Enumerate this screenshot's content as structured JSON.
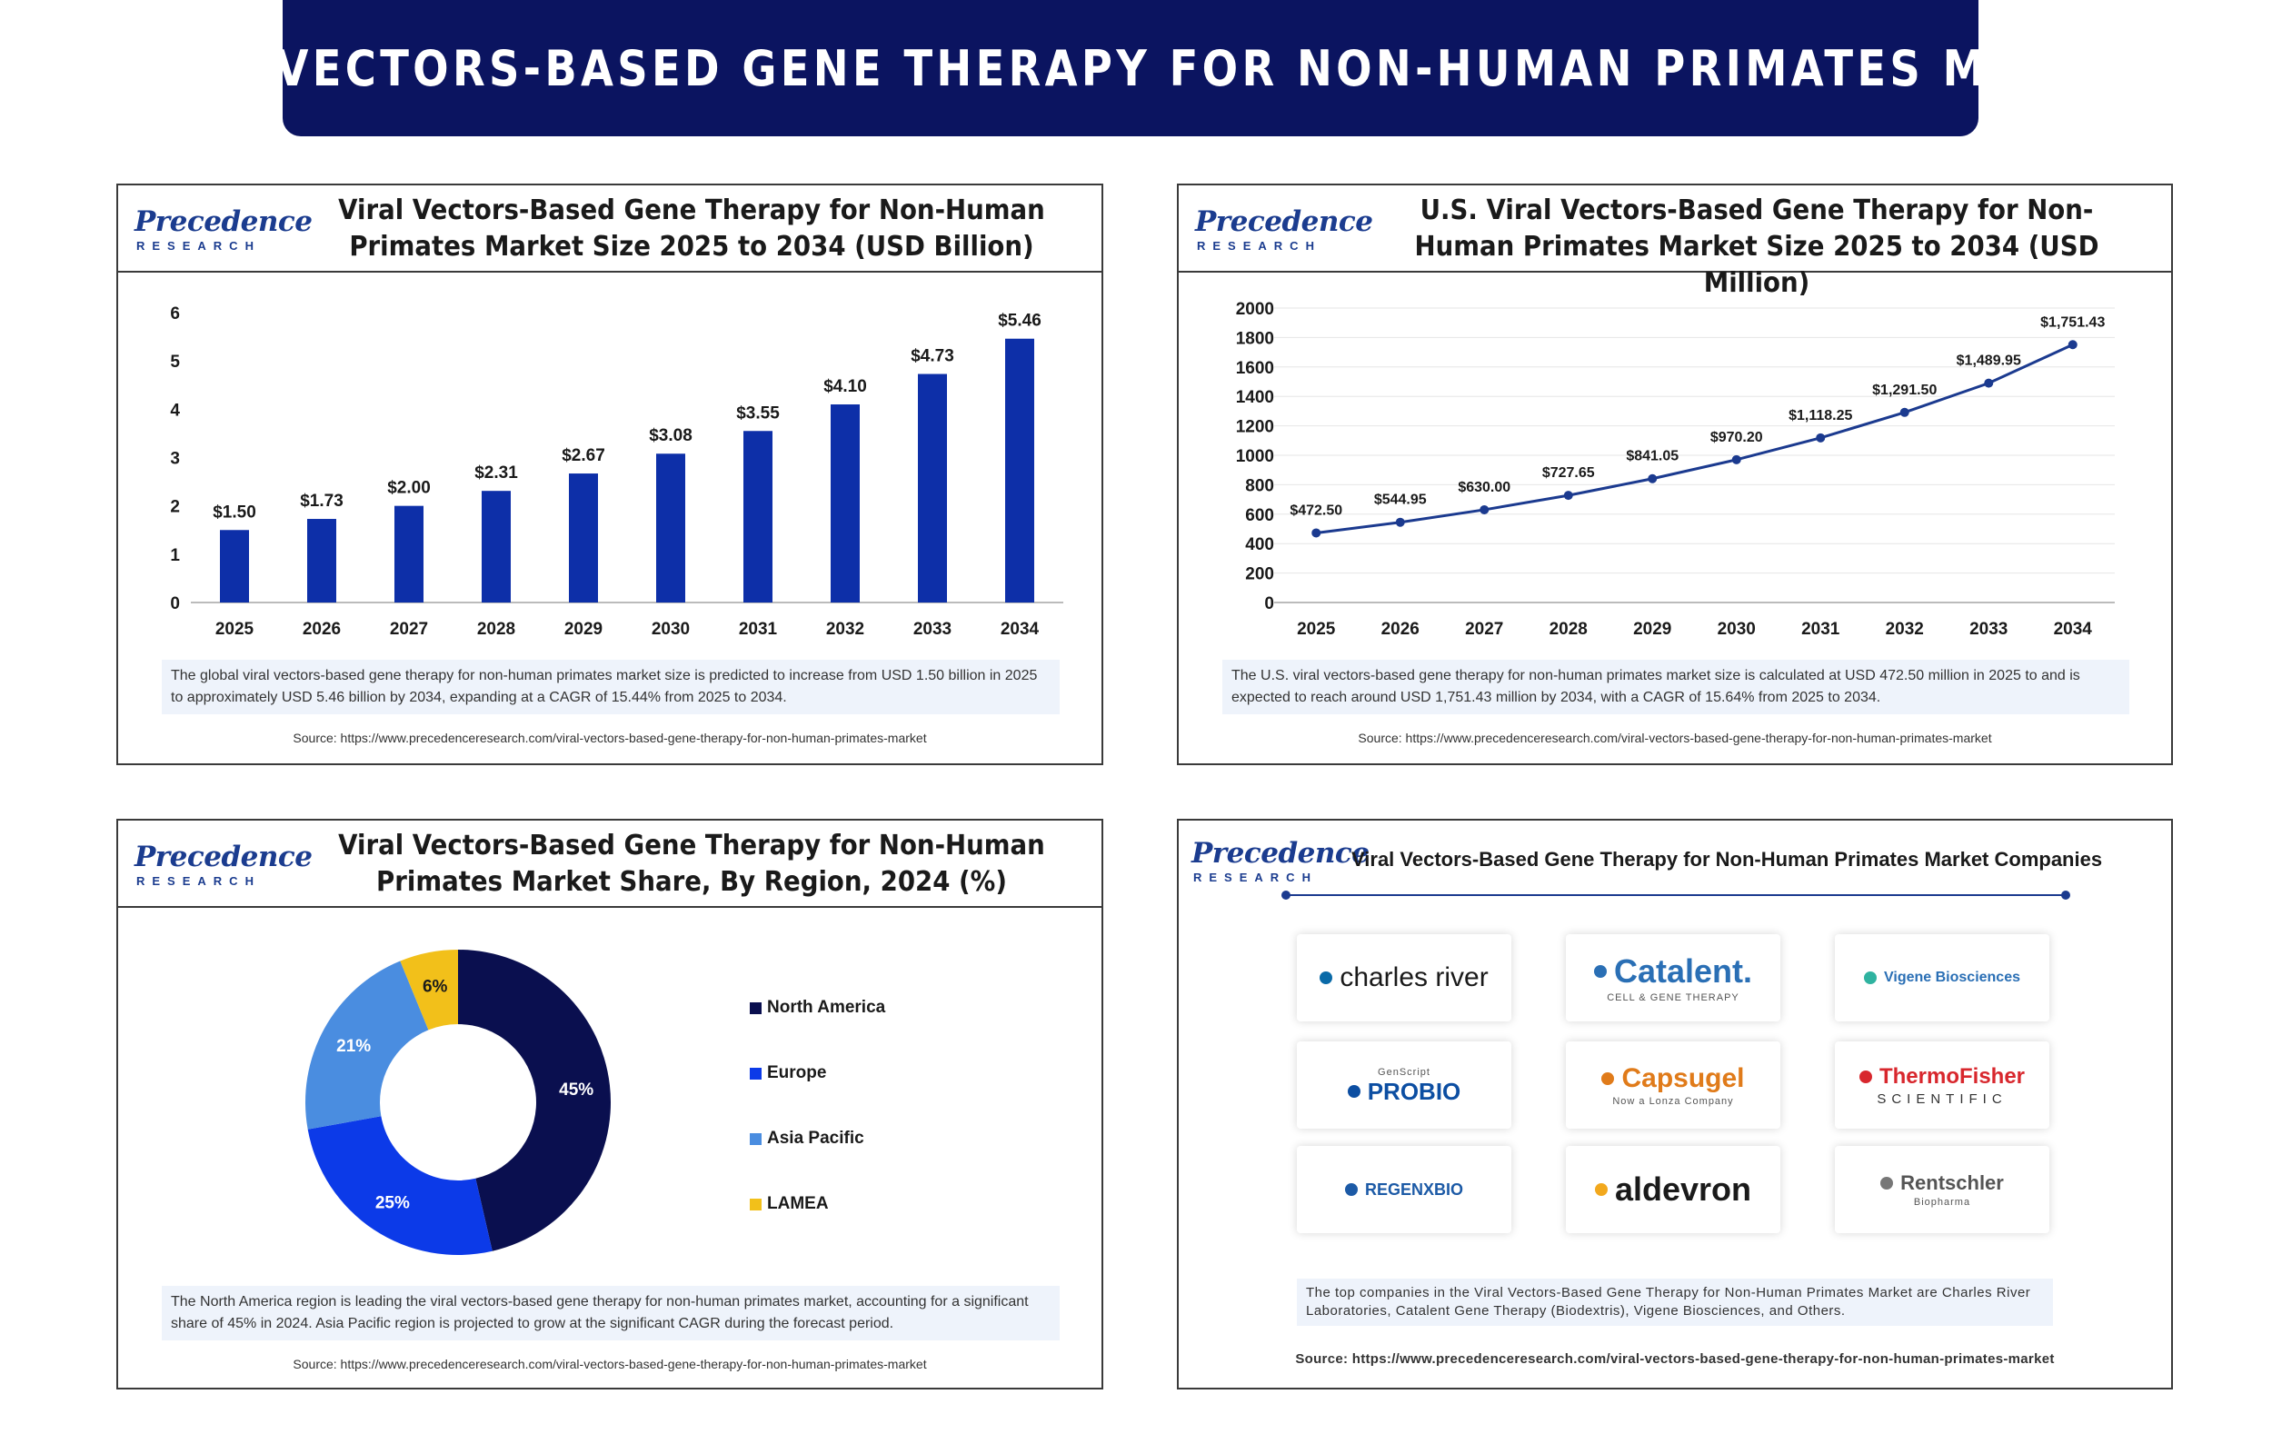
{
  "banner": {
    "title": "VIRAL VECTORS-BASED GENE THERAPY FOR NON-HUMAN PRIMATES MARKET"
  },
  "logo": {
    "main": "Precedence",
    "sub": "RESEARCH"
  },
  "panels": [
    {
      "title": "Viral Vectors-Based Gene Therapy for Non-Human Primates Market Size 2025 to 2034 (USD Billion)",
      "description": "The global viral vectors-based gene therapy for non-human primates market size is predicted to increase from USD 1.50 billion in 2025 to approximately USD 5.46 billion by 2034, expanding at a CAGR of 15.44% from 2025 to 2034.",
      "source": "Source: https://www.precedenceresearch.com/viral-vectors-based-gene-therapy-for-non-human-primates-market"
    },
    {
      "title": "U.S. Viral Vectors-Based Gene Therapy for Non-Human Primates Market Size 2025 to 2034 (USD Million)",
      "description": "The U.S. viral vectors-based gene therapy for non-human primates market size is calculated at USD 472.50 million in 2025 to and is expected to reach around USD 1,751.43 million by 2034, with a CAGR of 15.64% from 2025 to 2034.",
      "source": "Source: https://www.precedenceresearch.com/viral-vectors-based-gene-therapy-for-non-human-primates-market"
    },
    {
      "title": "Viral Vectors-Based Gene Therapy for Non-Human Primates Market Share, By Region, 2024 (%)",
      "description": "The North America region is leading the viral vectors-based gene therapy for non-human primates market, accounting for a significant share of 45% in 2024. Asia Pacific region is projected to grow at the significant CAGR during the forecast period.",
      "source": "Source: https://www.precedenceresearch.com/viral-vectors-based-gene-therapy-for-non-human-primates-market"
    },
    {
      "title": "Viral Vectors-Based Gene Therapy for Non-Human Primates Market Companies",
      "description": "The top companies in the Viral Vectors-Based Gene Therapy for Non-Human Primates Market are Charles River Laboratories, Catalent Gene Therapy (Biodextris), Vigene Biosciences,  and Others.",
      "source": "Source: https://www.precedenceresearch.com/viral-vectors-based-gene-therapy-for-non-human-primates-market"
    }
  ],
  "companies": [
    {
      "name": "charles river",
      "sub": "",
      "color": "#1a1a1a",
      "accent": "#0a6aa8"
    },
    {
      "name": "Catalent.",
      "sub": "CELL & GENE THERAPY",
      "color": "#2a6fb5",
      "accent": "#2a6fb5"
    },
    {
      "name": "Vigene Biosciences",
      "sub": "",
      "color": "#2a6fb5",
      "accent": "#2fb3a0"
    },
    {
      "name": "PROBIO",
      "sub": "GenScript",
      "color": "#0c4ea2",
      "accent": "#0c4ea2"
    },
    {
      "name": "Capsugel",
      "sub": "Now a Lonza Company",
      "color": "#e07b1a",
      "accent": "#e07b1a"
    },
    {
      "name": "ThermoFisher",
      "sub": "SCIENTIFIC",
      "color": "#d8272d",
      "accent": "#d8272d"
    },
    {
      "name": "REGENXBIO",
      "sub": "",
      "color": "#1c5aa6",
      "accent": "#1c5aa6"
    },
    {
      "name": "aldevron",
      "sub": "",
      "color": "#1a1a1a",
      "accent": "#f2a81d"
    },
    {
      "name": "Rentschler",
      "sub": "Biopharma",
      "color": "#555555",
      "accent": "#777777"
    }
  ],
  "chart_data": [
    {
      "type": "bar",
      "categories": [
        "2025",
        "2026",
        "2027",
        "2028",
        "2029",
        "2030",
        "2031",
        "2032",
        "2033",
        "2034"
      ],
      "values": [
        1.5,
        1.73,
        2.0,
        2.31,
        2.67,
        3.08,
        3.55,
        4.1,
        4.73,
        5.46
      ],
      "data_labels": [
        "$1.50",
        "$1.73",
        "$2.00",
        "$2.31",
        "$2.67",
        "$3.08",
        "$3.55",
        "$4.10",
        "$4.73",
        "$5.46"
      ],
      "yticks": [
        0,
        1,
        2,
        3,
        4,
        5,
        6
      ],
      "ylim": [
        0,
        6
      ],
      "color": "#0d2fa8",
      "grid": false
    },
    {
      "type": "line",
      "categories": [
        "2025",
        "2026",
        "2027",
        "2028",
        "2029",
        "2030",
        "2031",
        "2032",
        "2033",
        "2034"
      ],
      "values": [
        472.5,
        544.95,
        630.0,
        727.65,
        841.05,
        970.2,
        1118.25,
        1291.5,
        1489.95,
        1751.43
      ],
      "data_labels": [
        "$472.50",
        "$544.95",
        "$630.00",
        "$727.65",
        "$841.05",
        "$970.20",
        "$1,118.25",
        "$1,291.50",
        "$1,489.95",
        "$1,751.43"
      ],
      "yticks": [
        0,
        200,
        400,
        600,
        800,
        1000,
        1200,
        1400,
        1600,
        1800,
        2000
      ],
      "ylim": [
        0,
        2000
      ],
      "color": "#1b3a8f",
      "grid": true
    },
    {
      "type": "pie",
      "donut": true,
      "categories": [
        "North America",
        "Europe",
        "Asia Pacific",
        "LAMEA"
      ],
      "values": [
        45,
        25,
        21,
        6
      ],
      "data_labels": [
        "45%",
        "25%",
        "21%",
        "6%"
      ],
      "colors": [
        "#0a0f4f",
        "#0c3ae8",
        "#4a8de0",
        "#f2c01a"
      ],
      "legend": "right"
    }
  ]
}
